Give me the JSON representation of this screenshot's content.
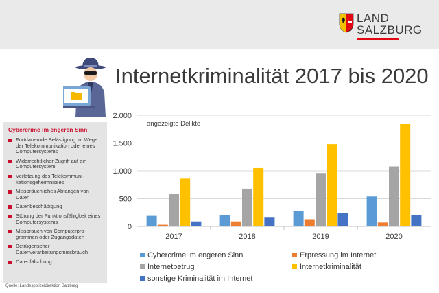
{
  "branding": {
    "logo_line1": "LAND",
    "logo_line2": "SALZBURG",
    "red": "#e30613"
  },
  "header": {
    "title": "Internetkriminalität 2017 bis 2020"
  },
  "sidebar": {
    "title": "Cybercrime im engeren Sinn",
    "items": [
      {
        "label": "Fortdauernde Belästigung im Wege der Telekommunikation oder eines Computersystems"
      },
      {
        "label": "Widerrechtlicher Zugriff auf ein Computersystem"
      },
      {
        "label": "Verletzung des Telekommuni­kationsgeheimnisses"
      },
      {
        "label": "Missbräuchliches Abfangen von Daten"
      },
      {
        "label": "Datenbeschädigung"
      },
      {
        "label": "Störung der Funktionsfähigkeit eines Computersystems"
      },
      {
        "label": "Missbrauch von Computerpro­grammen oder Zugangsdaten"
      },
      {
        "label": "Betrügerischer Datenverarbeitungsmissbrauch"
      },
      {
        "label": "Datenfälschung"
      }
    ]
  },
  "footer": {
    "source": "Quelle: Landespolizeidirektion Salzburg"
  },
  "icons": [
    "shield-icon",
    "hacker-icon",
    "laptop-icon",
    "folder-icon"
  ],
  "chart_data": {
    "type": "bar",
    "annotation": "angezeigte Delikte",
    "categories": [
      "2017",
      "2018",
      "2019",
      "2020"
    ],
    "series": [
      {
        "name": "Cybercrime im engeren Sinn",
        "color": "#5b9bd5",
        "values": [
          190,
          205,
          280,
          540
        ]
      },
      {
        "name": "Erpressung im Internet",
        "color": "#ed7d31",
        "values": [
          30,
          90,
          130,
          70
        ]
      },
      {
        "name": "Internetbetrug",
        "color": "#a5a5a5",
        "values": [
          580,
          680,
          960,
          1080
        ]
      },
      {
        "name": "Internetkriminalität",
        "color": "#ffc000",
        "values": [
          860,
          1050,
          1480,
          1840
        ]
      },
      {
        "name": "sonstige Kriminalität im Internet",
        "color": "#4472c4",
        "values": [
          90,
          170,
          240,
          210
        ]
      }
    ],
    "ylim": [
      0,
      2000
    ],
    "yticks": [
      0,
      500,
      1000,
      1500,
      2000
    ],
    "ytick_labels": [
      "0",
      "500",
      "1.000",
      "1.500",
      "2.000"
    ],
    "grid": true,
    "legend_position": "bottom"
  }
}
